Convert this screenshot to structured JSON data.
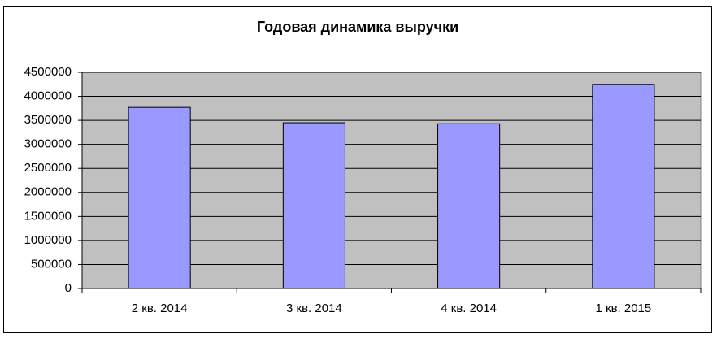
{
  "chart_data": {
    "type": "bar",
    "title": "Годовая динамика выручки",
    "categories": [
      "2 кв. 2014",
      "3 кв. 2014",
      "4 кв. 2014",
      "1 кв. 2015"
    ],
    "values": [
      3770000,
      3450000,
      3430000,
      4250000
    ],
    "color": "#9999ff",
    "ylim": [
      0,
      4500000
    ],
    "yticks": [
      0,
      500000,
      1000000,
      1500000,
      2000000,
      2500000,
      3000000,
      3500000,
      4000000,
      4500000
    ],
    "grid": true
  }
}
